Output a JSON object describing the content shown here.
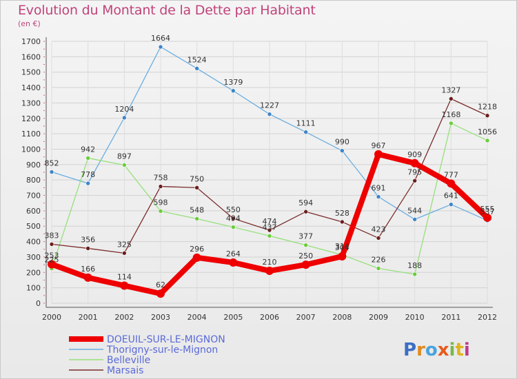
{
  "chart_data": {
    "type": "line",
    "title": "Evolution du Montant de la Dette par Habitant",
    "subtitle": "(en €)",
    "categories": [
      "2000",
      "2001",
      "2002",
      "2003",
      "2004",
      "2005",
      "2006",
      "2007",
      "2008",
      "2009",
      "2010",
      "2011",
      "2012"
    ],
    "ylim": [
      0,
      1700
    ],
    "yticks": [
      0,
      100,
      200,
      300,
      400,
      500,
      600,
      700,
      800,
      900,
      1000,
      1100,
      1200,
      1300,
      1400,
      1500,
      1600,
      1700
    ],
    "series": [
      {
        "name": "DOEUIL-SUR-LE-MIGNON",
        "color": "#ee0000",
        "marker": "#ee0000",
        "values": [
          253,
          166,
          114,
          62,
          296,
          264,
          210,
          250,
          304,
          967,
          909,
          777,
          555
        ]
      },
      {
        "name": "Thorigny-sur-le-Mignon",
        "color": "#6aaee0",
        "marker": "#3d84c8",
        "values": [
          852,
          778,
          1204,
          1664,
          1524,
          1379,
          1227,
          1111,
          990,
          691,
          544,
          641,
          537
        ]
      },
      {
        "name": "Belleville",
        "color": "#96e07a",
        "marker": "#6acc3a",
        "values": [
          225,
          942,
          897,
          598,
          548,
          494,
          437,
          377,
          314,
          226,
          188,
          1168,
          1056
        ]
      },
      {
        "name": "Marsais",
        "color": "#7a2a2a",
        "marker": "#6b1e1e",
        "values": [
          383,
          356,
          325,
          758,
          750,
          550,
          474,
          594,
          528,
          423,
          795,
          1327,
          1218
        ]
      }
    ]
  },
  "logo": {
    "text": "Proxiti"
  }
}
